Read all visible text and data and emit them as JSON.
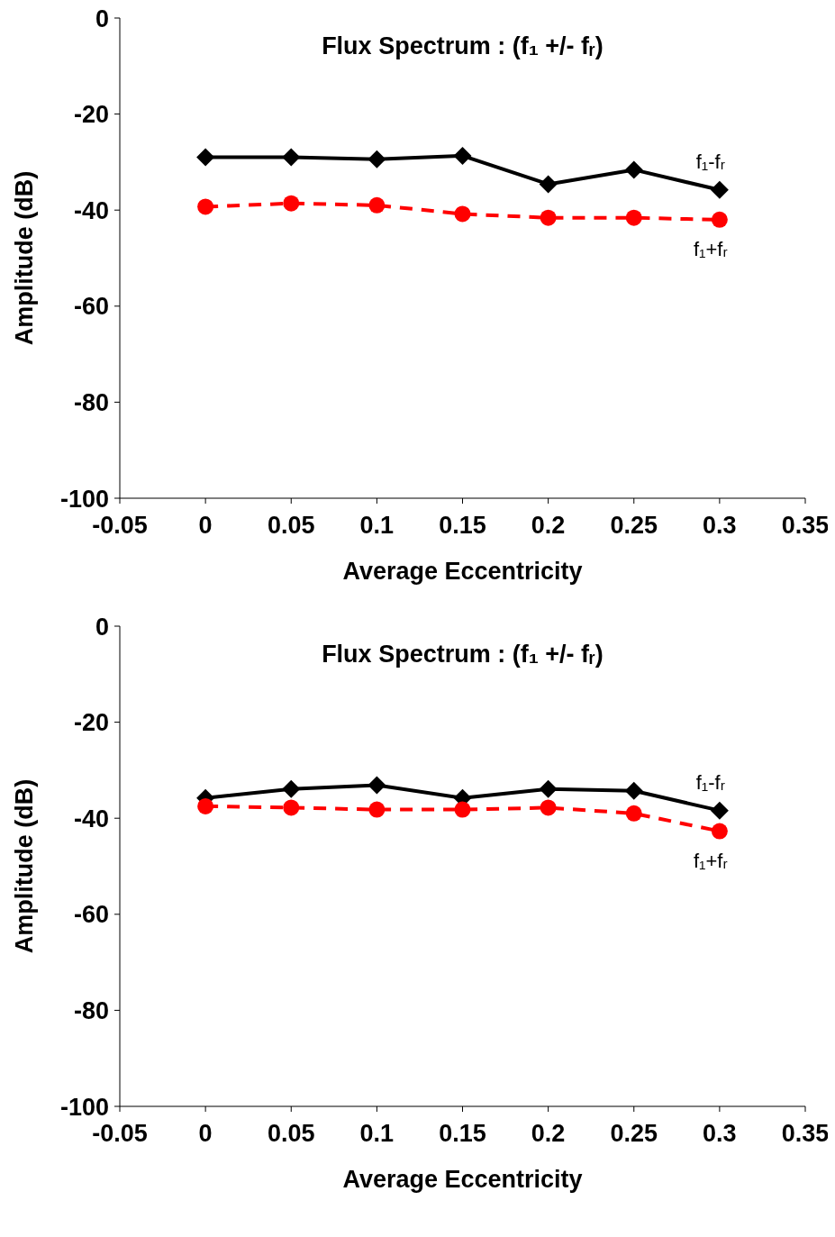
{
  "chart_data": [
    {
      "type": "line",
      "title": "Flux Spectrum : (f₁ +/- fᵣ)",
      "xlabel": "Average Eccentricity",
      "ylabel": "Amplitude (dB)",
      "x": [
        0,
        0.05,
        0.1,
        0.15,
        0.2,
        0.25,
        0.3
      ],
      "xlim": [
        -0.05,
        0.35
      ],
      "xticks": [
        -0.05,
        0,
        0.05,
        0.1,
        0.15,
        0.2,
        0.25,
        0.3,
        0.35
      ],
      "ylim": [
        -100,
        0
      ],
      "yticks": [
        -100,
        -80,
        -60,
        -40,
        -20,
        0
      ],
      "grid": false,
      "legend": false,
      "series": [
        {
          "name": "f₁-fᵣ",
          "color": "#000000",
          "marker": "diamond",
          "line_style": "solid",
          "values": [
            -29,
            -29,
            -29.4,
            -28.7,
            -34.6,
            -31.6,
            -35.8
          ]
        },
        {
          "name": "f₁+fᵣ",
          "color": "#ff0000",
          "marker": "circle",
          "line_style": "dashed",
          "values": [
            -39.3,
            -38.6,
            -39,
            -40.8,
            -41.6,
            -41.6,
            -42
          ]
        }
      ]
    },
    {
      "type": "line",
      "title": "Flux Spectrum : (f₁ +/- fᵣ)",
      "xlabel": "Average Eccentricity",
      "ylabel": "Amplitude (dB)",
      "x": [
        0,
        0.05,
        0.1,
        0.15,
        0.2,
        0.25,
        0.3
      ],
      "xlim": [
        -0.05,
        0.35
      ],
      "xticks": [
        -0.05,
        0,
        0.05,
        0.1,
        0.15,
        0.2,
        0.25,
        0.3,
        0.35
      ],
      "ylim": [
        -100,
        0
      ],
      "yticks": [
        -100,
        -80,
        -60,
        -40,
        -20,
        0
      ],
      "grid": false,
      "legend": false,
      "series": [
        {
          "name": "f₁-fᵣ",
          "color": "#000000",
          "marker": "diamond",
          "line_style": "solid",
          "values": [
            -35.8,
            -33.9,
            -33.1,
            -35.8,
            -33.9,
            -34.3,
            -38.4
          ]
        },
        {
          "name": "f₁+fᵣ",
          "color": "#ff0000",
          "marker": "circle",
          "line_style": "dashed",
          "values": [
            -37.5,
            -37.8,
            -38.2,
            -38.2,
            -37.8,
            -39,
            -42.7
          ]
        }
      ]
    }
  ]
}
